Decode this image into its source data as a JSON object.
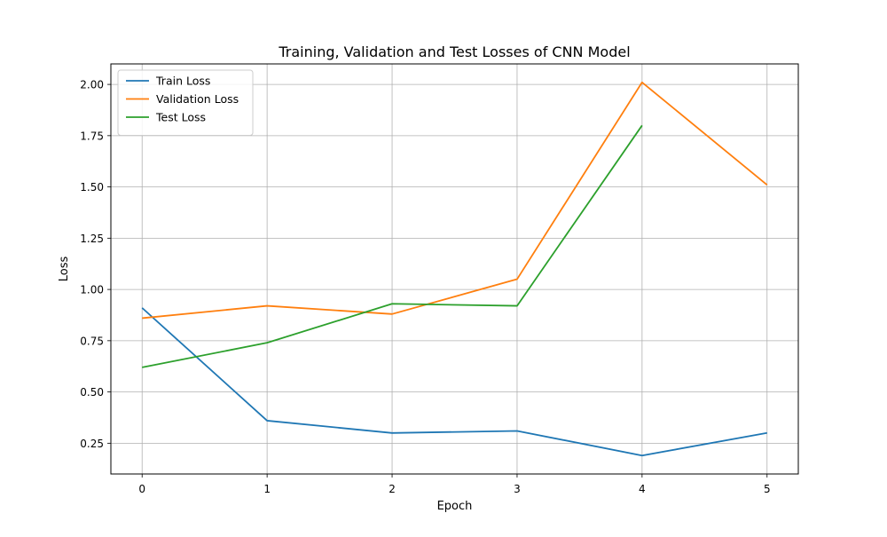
{
  "chart_data": {
    "type": "line",
    "title": "Training, Validation and Test Losses of CNN Model",
    "xlabel": "Epoch",
    "ylabel": "Loss",
    "x": [
      0,
      1,
      2,
      3,
      4,
      5
    ],
    "xlim": [
      -0.25,
      5.25
    ],
    "ylim": [
      0.1,
      2.1
    ],
    "xticks": [
      0,
      1,
      2,
      3,
      4,
      5
    ],
    "xtick_labels": [
      "0",
      "1",
      "2",
      "3",
      "4",
      "5"
    ],
    "yticks": [
      0.25,
      0.5,
      0.75,
      1.0,
      1.25,
      1.5,
      1.75,
      2.0
    ],
    "ytick_labels": [
      "0.25",
      "0.50",
      "0.75",
      "1.00",
      "1.25",
      "1.50",
      "1.75",
      "2.00"
    ],
    "grid": true,
    "legend_position": "top-left",
    "series": [
      {
        "name": "Train Loss",
        "color": "#1f77b4",
        "x": [
          0,
          1,
          2,
          3,
          4,
          5
        ],
        "values": [
          0.91,
          0.36,
          0.3,
          0.31,
          0.19,
          0.3
        ]
      },
      {
        "name": "Validation Loss",
        "color": "#ff7f0e",
        "x": [
          0,
          1,
          2,
          3,
          4,
          5
        ],
        "values": [
          0.86,
          0.92,
          0.88,
          1.05,
          2.01,
          1.51
        ]
      },
      {
        "name": "Test Loss",
        "color": "#2ca02c",
        "x": [
          0,
          1,
          2,
          3,
          4
        ],
        "values": [
          0.62,
          0.74,
          0.93,
          0.92,
          1.8
        ]
      }
    ]
  }
}
